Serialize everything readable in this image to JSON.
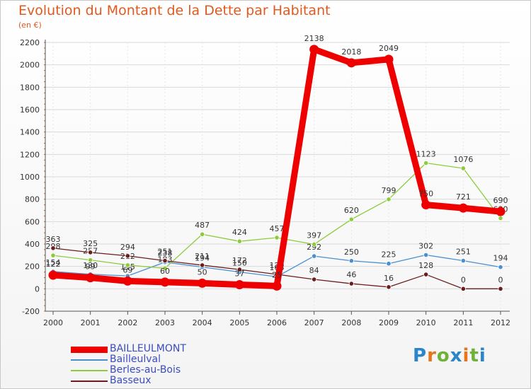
{
  "header": {
    "title": "Evolution du Montant de la Dette par Habitant",
    "unit": "(en €)"
  },
  "logo": {
    "text": "Proxiti"
  },
  "colors": {
    "title": "#e05a1e",
    "legend_text": "#3b4cc0",
    "grid": "#d9d9d9"
  },
  "chart_data": {
    "type": "line",
    "title": "Evolution du Montant de la Dette par Habitant",
    "subtitle": "(en €)",
    "xlabel": "",
    "ylabel": "",
    "x": [
      "2000",
      "2001",
      "2002",
      "2003",
      "2004",
      "2005",
      "2006",
      "2007",
      "2008",
      "2009",
      "2010",
      "2011",
      "2012"
    ],
    "ylim": [
      -200,
      2200
    ],
    "yticks": [
      -200,
      0,
      200,
      400,
      600,
      800,
      1000,
      1200,
      1400,
      1600,
      1800,
      2000,
      2200
    ],
    "grid": true,
    "legend_position": "bottom-left",
    "series": [
      {
        "name": "BAILLEULMONT",
        "color": "#ee0000",
        "width": "thick",
        "values": [
          122,
          99,
          69,
          60,
          50,
          37,
          25,
          2138,
          2018,
          2049,
          750,
          721,
          690
        ],
        "labels": [
          "122",
          "99",
          "69",
          "60",
          "50",
          "37",
          "25",
          "2138",
          "2018",
          "2049",
          "750",
          "721",
          "690"
        ]
      },
      {
        "name": "Bailleulval",
        "color": "#4a90d0",
        "width": "thin",
        "values": [
          154,
          130,
          115,
          238,
          194,
          150,
          108,
          292,
          250,
          225,
          302,
          251,
          194
        ],
        "labels": [
          "154",
          "130",
          "115",
          "238",
          "194",
          "150",
          "108",
          "292",
          "250",
          "225",
          "302",
          "251",
          "194"
        ]
      },
      {
        "name": "Berles-au-Bois",
        "color": "#8ccc3c",
        "width": "thin",
        "values": [
          298,
          257,
          212,
          183,
          487,
          424,
          457,
          397,
          620,
          799,
          1123,
          1076,
          630
        ],
        "labels": [
          "298",
          "257",
          "212",
          "183",
          "487",
          "424",
          "457",
          "397",
          "620",
          "799",
          "1123",
          "1076",
          "630"
        ]
      },
      {
        "name": "Basseux",
        "color": "#6b1d1d",
        "width": "thin",
        "values": [
          363,
          325,
          294,
          251,
          211,
          172,
          129,
          84,
          46,
          16,
          128,
          0,
          0
        ],
        "labels": [
          "363",
          "325",
          "294",
          "251",
          "211",
          "172",
          "129",
          "84",
          "46",
          "16",
          "128",
          "0",
          "0"
        ]
      }
    ]
  }
}
